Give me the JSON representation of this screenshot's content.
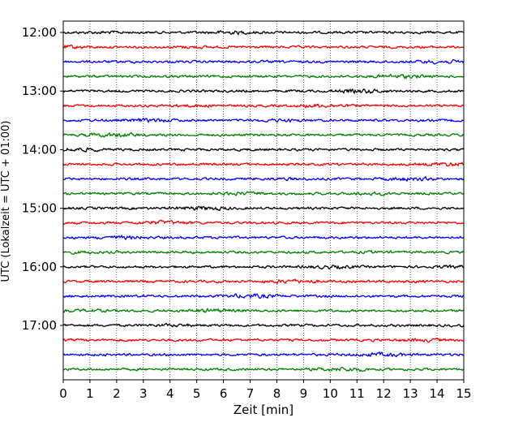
{
  "chart_data": {
    "type": "line",
    "title": "",
    "xlabel": "Zeit  [min]",
    "ylabel": "UTC (Lokalzeit = UTC + 01:00)",
    "xlim": [
      0,
      15
    ],
    "x_ticks": [
      "0",
      "1",
      "2",
      "3",
      "4",
      "5",
      "6",
      "7",
      "8",
      "9",
      "10",
      "11",
      "12",
      "13",
      "14",
      "15"
    ],
    "y_ticks": [
      "12:00",
      "13:00",
      "14:00",
      "15:00",
      "16:00",
      "17:00"
    ],
    "grid": "vertical dotted",
    "trace_interval_min": 15,
    "colors": [
      "#000000",
      "#ff0000",
      "#0000ff",
      "#008000"
    ],
    "traces": [
      {
        "start": "12:00"
      },
      {
        "start": "12:15"
      },
      {
        "start": "12:30"
      },
      {
        "start": "12:45"
      },
      {
        "start": "13:00"
      },
      {
        "start": "13:15"
      },
      {
        "start": "13:30"
      },
      {
        "start": "13:45"
      },
      {
        "start": "14:00"
      },
      {
        "start": "14:15"
      },
      {
        "start": "14:30"
      },
      {
        "start": "14:45"
      },
      {
        "start": "15:00"
      },
      {
        "start": "15:15"
      },
      {
        "start": "15:30"
      },
      {
        "start": "15:45"
      },
      {
        "start": "16:00"
      },
      {
        "start": "16:15"
      },
      {
        "start": "16:30"
      },
      {
        "start": "16:45"
      },
      {
        "start": "17:00"
      },
      {
        "start": "17:15"
      },
      {
        "start": "17:30"
      },
      {
        "start": "17:45"
      }
    ]
  }
}
